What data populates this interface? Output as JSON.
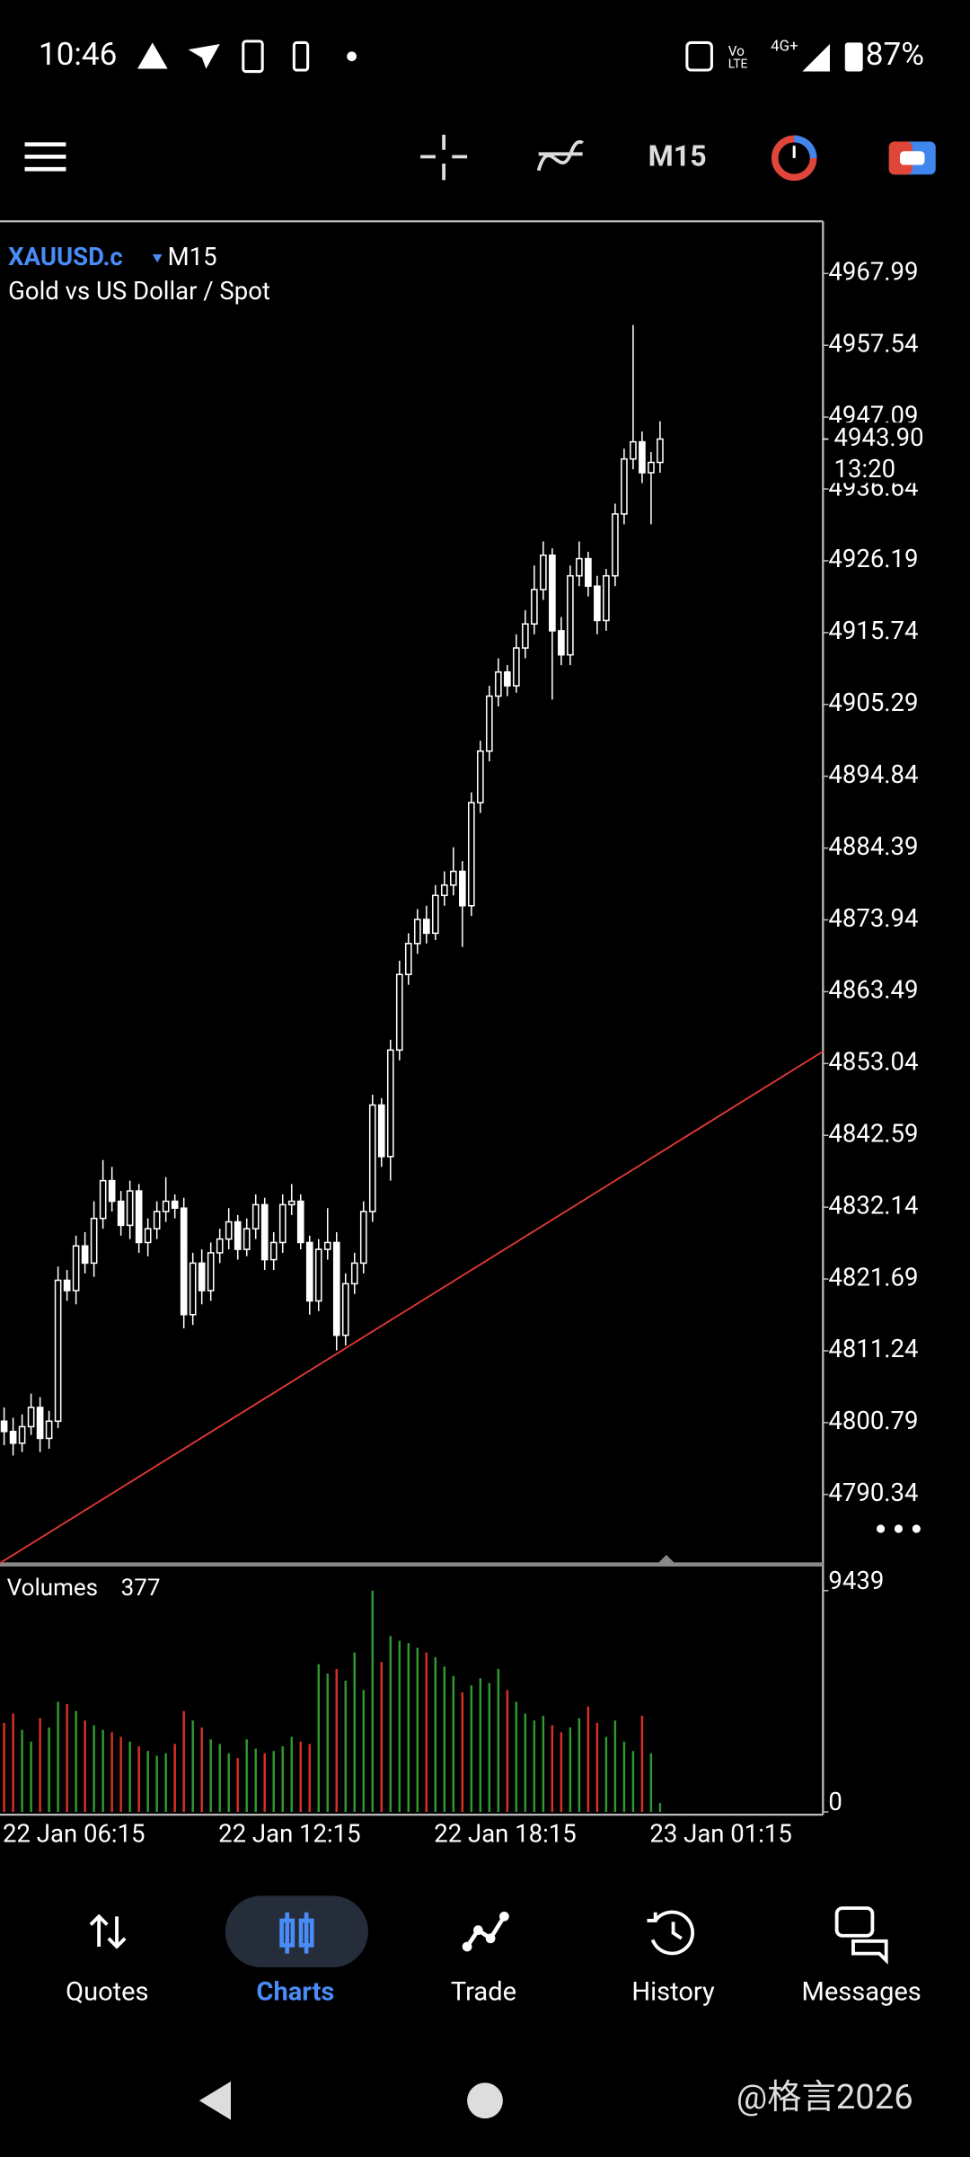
{
  "status_bar": {
    "time": "10:46",
    "battery": "87%"
  },
  "toolbar": {
    "timeframe": "M15"
  },
  "chart_data": {
    "type": "candlestick",
    "symbol": "XAUUSD.c",
    "timeframe": "M15",
    "description": "Gold vs US Dollar / Spot",
    "categories": [
      "22 Jan 06:15",
      null,
      null,
      null,
      null,
      null,
      null,
      null,
      null,
      null,
      null,
      null,
      null,
      null,
      null,
      null,
      null,
      null,
      null,
      null,
      null,
      null,
      null,
      null,
      "22 Jan 12:15",
      null,
      null,
      null,
      null,
      null,
      null,
      null,
      null,
      null,
      null,
      null,
      null,
      null,
      null,
      null,
      null,
      null,
      null,
      null,
      null,
      null,
      null,
      null,
      "22 Jan 18:15",
      null,
      null,
      null,
      null,
      null,
      null,
      null,
      null,
      null,
      null,
      null,
      null,
      null,
      null,
      null,
      null,
      null,
      null,
      null,
      null,
      null,
      null,
      null,
      "23 Jan 01:15",
      null
    ],
    "open": [
      4801.0,
      4799.5,
      4797.8,
      4800.2,
      4803.0,
      4798.5,
      4801.0,
      4821.5,
      4820.0,
      4826.5,
      4824.0,
      4830.5,
      4836.0,
      4833.0,
      4829.5,
      4834.5,
      4827.0,
      4829.0,
      4831.5,
      4833.0,
      4832.0,
      4816.5,
      4824.0,
      4820.0,
      4825.5,
      4827.5,
      4830.0,
      4826.0,
      4829.0,
      4832.5,
      4824.5,
      4827.0,
      4832.5,
      4833.0,
      4827.0,
      4818.5,
      4826.0,
      4827.0,
      4813.5,
      4821.0,
      4824.0,
      4831.5,
      4847.0,
      4839.5,
      4855.0,
      4866.0,
      4870.5,
      4874.0,
      4872.0,
      4877.5,
      4879.0,
      4881.0,
      4876.0,
      4891.0,
      4898.5,
      4906.5,
      4910.0,
      4908.0,
      4913.5,
      4917.0,
      4922.0,
      4927.0,
      4916.0,
      4912.5,
      4924.0,
      4926.5,
      4922.5,
      4917.5,
      4924.0,
      4933.0,
      4941.0,
      4943.5,
      4939.0,
      4940.5
    ],
    "high": [
      4803.0,
      4801.5,
      4802.0,
      4805.0,
      4804.5,
      4802.5,
      4823.5,
      4823.0,
      4828.0,
      4828.5,
      4833.0,
      4839.0,
      4838.0,
      4834.5,
      4836.0,
      4835.5,
      4830.5,
      4833.0,
      4836.5,
      4834.0,
      4833.5,
      4825.5,
      4826.0,
      4827.0,
      4829.0,
      4832.0,
      4831.0,
      4830.5,
      4834.0,
      4833.5,
      4828.5,
      4834.0,
      4835.5,
      4834.0,
      4828.0,
      4827.5,
      4832.0,
      4828.5,
      4822.5,
      4825.5,
      4833.0,
      4848.5,
      4848.0,
      4856.5,
      4868.0,
      4872.0,
      4875.5,
      4876.0,
      4879.0,
      4881.0,
      4884.5,
      4882.5,
      4892.5,
      4900.0,
      4908.0,
      4912.0,
      4911.0,
      4915.5,
      4919.0,
      4925.5,
      4929.0,
      4928.0,
      4918.0,
      4925.5,
      4929.0,
      4927.5,
      4924.0,
      4925.0,
      4934.5,
      4942.5,
      4960.5,
      4945.0,
      4942.0,
      4946.5
    ],
    "low": [
      4797.5,
      4796.0,
      4796.5,
      4799.0,
      4796.5,
      4797.0,
      4800.0,
      4818.5,
      4818.0,
      4822.5,
      4822.0,
      4829.0,
      4831.5,
      4828.0,
      4827.5,
      4825.5,
      4825.0,
      4827.5,
      4830.0,
      4830.5,
      4814.5,
      4815.0,
      4818.0,
      4818.5,
      4824.0,
      4826.0,
      4824.5,
      4825.0,
      4827.5,
      4823.0,
      4823.0,
      4825.5,
      4831.0,
      4826.0,
      4816.5,
      4817.0,
      4824.5,
      4811.3,
      4812.0,
      4819.5,
      4822.5,
      4830.0,
      4838.0,
      4836.0,
      4853.5,
      4864.5,
      4869.0,
      4870.5,
      4871.0,
      4876.0,
      4877.5,
      4870.0,
      4874.5,
      4889.5,
      4897.0,
      4905.0,
      4906.5,
      4907.0,
      4912.0,
      4915.5,
      4920.5,
      4906.0,
      4911.0,
      4911.0,
      4922.5,
      4921.0,
      4915.5,
      4916.0,
      4922.5,
      4931.5,
      4939.5,
      4937.5,
      4931.5,
      4939.0
    ],
    "close": [
      4799.5,
      4797.8,
      4800.2,
      4803.0,
      4798.5,
      4801.0,
      4821.5,
      4820.0,
      4826.5,
      4824.0,
      4830.5,
      4836.0,
      4833.0,
      4829.5,
      4834.5,
      4827.0,
      4829.0,
      4831.5,
      4833.0,
      4832.0,
      4816.5,
      4824.0,
      4820.0,
      4825.5,
      4827.5,
      4830.0,
      4826.0,
      4829.0,
      4832.5,
      4824.5,
      4827.0,
      4832.5,
      4833.0,
      4827.0,
      4818.5,
      4826.0,
      4827.0,
      4813.5,
      4821.0,
      4824.0,
      4831.5,
      4847.0,
      4839.5,
      4855.0,
      4866.0,
      4870.5,
      4874.0,
      4872.0,
      4877.5,
      4879.0,
      4881.0,
      4876.0,
      4891.0,
      4898.5,
      4906.5,
      4910.0,
      4908.0,
      4913.5,
      4917.0,
      4922.0,
      4927.0,
      4916.0,
      4912.5,
      4924.0,
      4926.5,
      4922.5,
      4917.5,
      4924.0,
      4933.0,
      4941.0,
      4943.5,
      4939.0,
      4940.5,
      4943.9
    ],
    "color": "#ffffff",
    "ylim": [
      4780.35,
      4975.58
    ],
    "yticks": [
      4967.99,
      4957.54,
      4947.09,
      4936.64,
      4926.19,
      4915.74,
      4905.29,
      4894.84,
      4884.39,
      4873.94,
      4863.49,
      4853.04,
      4842.59,
      4832.14,
      4821.69,
      4811.24,
      4800.79,
      4790.34
    ],
    "current_price": {
      "value": 4943.9,
      "label": "4943.90"
    },
    "bar_countdown": "13:20",
    "trendline": {
      "color": "#e53935",
      "values": [
        4780.35,
        4854.8
      ]
    },
    "volume": {
      "title": "Volumes",
      "ylim": [
        0,
        9439
      ],
      "yticks": [
        9439,
        0
      ],
      "up_color": "#2e9a2e",
      "down_color": "#d93025",
      "values": [
        3800,
        4200,
        3500,
        3000,
        4000,
        3600,
        4700,
        4600,
        4300,
        3900,
        3700,
        3500,
        3400,
        3200,
        3000,
        2800,
        2600,
        2400,
        2500,
        2900,
        4300,
        3900,
        3600,
        3100,
        2900,
        2500,
        2300,
        3100,
        2700,
        2500,
        2600,
        2800,
        3200,
        3000,
        2900,
        6300,
        5900,
        6100,
        5600,
        6800,
        5200,
        9439,
        6400,
        7500,
        7300,
        7200,
        7000,
        6800,
        6600,
        6200,
        5800,
        5100,
        5400,
        5700,
        5500,
        6100,
        5200,
        4700,
        4200,
        3900,
        4100,
        3700,
        3400,
        3600,
        4000,
        4500,
        3800,
        3200,
        3900,
        3000,
        2600,
        4100,
        2500,
        377
      ]
    }
  },
  "nav": {
    "items": [
      "Quotes",
      "Charts",
      "Trade",
      "History",
      "Messages"
    ],
    "active": 1
  },
  "watermark": "@格言2026"
}
